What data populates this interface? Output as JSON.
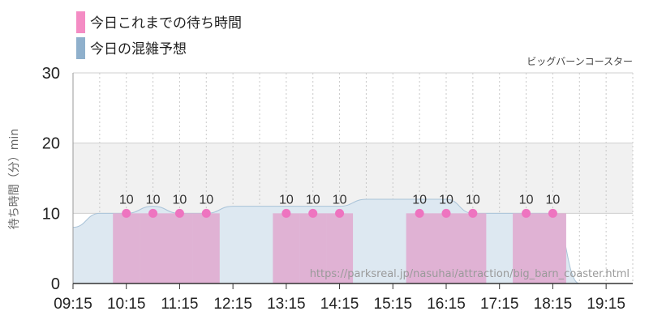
{
  "legend": [
    {
      "label": "今日これまでの待ち時間",
      "color": "#f48cc4"
    },
    {
      "label": "今日の混雑予想",
      "color": "#8fb0cc"
    }
  ],
  "ride_name": "ビッグバーンコースター",
  "source_url": "https://parksreal.jp/nasuhai/attraction/big_barn_coaster.html",
  "chart_data": {
    "type": "bar",
    "ylabel": "待ち時間（分）min",
    "ylim": [
      0,
      30
    ],
    "yticks": [
      0,
      10,
      20,
      30
    ],
    "x_tick_labels": [
      "09:15",
      "10:15",
      "11:15",
      "12:15",
      "13:15",
      "14:15",
      "15:15",
      "16:15",
      "17:15",
      "18:15",
      "19:15"
    ],
    "x_range": [
      "09:15",
      "19:45"
    ],
    "grid": true,
    "highlight_band": [
      10,
      20
    ],
    "series": [
      {
        "name": "今日これまでの待ち時間",
        "kind": "bar",
        "color": "#e0b2d4",
        "dot_color": "#ee74c0",
        "points": [
          {
            "time": "10:15",
            "value": 10
          },
          {
            "time": "10:45",
            "value": 10
          },
          {
            "time": "11:15",
            "value": 10
          },
          {
            "time": "11:45",
            "value": 10
          },
          {
            "time": "13:15",
            "value": 10
          },
          {
            "time": "13:45",
            "value": 10
          },
          {
            "time": "14:15",
            "value": 10
          },
          {
            "time": "15:45",
            "value": 10
          },
          {
            "time": "16:15",
            "value": 10
          },
          {
            "time": "16:45",
            "value": 10
          },
          {
            "time": "17:45",
            "value": 10
          },
          {
            "time": "18:15",
            "value": 10
          }
        ]
      },
      {
        "name": "今日の混雑予想",
        "kind": "area",
        "color": "#8fb0cc",
        "points": [
          {
            "time": "09:15",
            "value": 8
          },
          {
            "time": "09:45",
            "value": 10
          },
          {
            "time": "10:15",
            "value": 10
          },
          {
            "time": "10:45",
            "value": 11
          },
          {
            "time": "11:15",
            "value": 10
          },
          {
            "time": "11:45",
            "value": 10
          },
          {
            "time": "12:15",
            "value": 11
          },
          {
            "time": "12:45",
            "value": 11
          },
          {
            "time": "13:15",
            "value": 11
          },
          {
            "time": "13:45",
            "value": 11
          },
          {
            "time": "14:15",
            "value": 11
          },
          {
            "time": "14:45",
            "value": 12
          },
          {
            "time": "15:15",
            "value": 12
          },
          {
            "time": "15:45",
            "value": 12
          },
          {
            "time": "16:15",
            "value": 12
          },
          {
            "time": "16:45",
            "value": 10
          },
          {
            "time": "17:15",
            "value": 10
          },
          {
            "time": "17:45",
            "value": 10
          },
          {
            "time": "18:15",
            "value": 10
          },
          {
            "time": "18:45",
            "value": 0
          },
          {
            "time": "19:15",
            "value": 0
          },
          {
            "time": "19:45",
            "value": 0
          }
        ]
      }
    ]
  }
}
